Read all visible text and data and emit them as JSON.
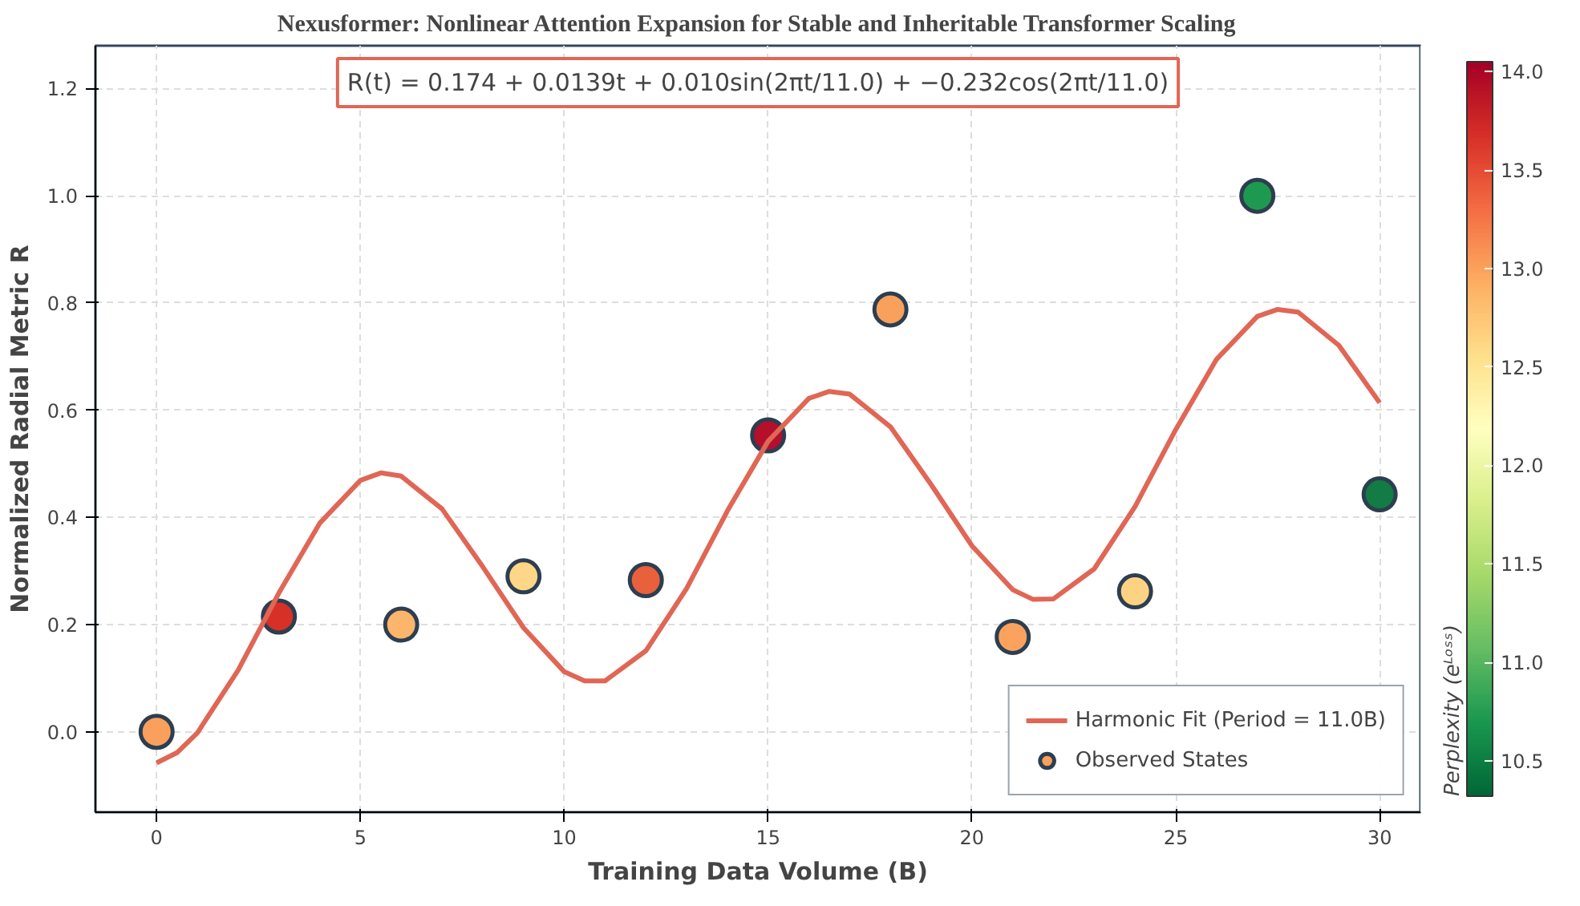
{
  "chart_data": {
    "type": "scatter",
    "title": "Nexusformer: Nonlinear Attention Expansion for Stable and Inheritable Transformer Scaling",
    "xlabel": "Training Data Volume (B)",
    "ylabel": "Normalized Radial Metric R",
    "clabel": "Perplexity (eᴸᵒˢˢ)",
    "annotations": [
      "R(t) = 0.174 + 0.0139t + 0.010sin(2πt/11.0) + −0.232cos(2πt/11.0)"
    ],
    "series": [
      {
        "name": "Harmonic Fit (Period = 11.0B)",
        "type": "line",
        "color": "#e06655",
        "x": [
          0,
          0.5,
          1,
          2,
          3,
          4,
          5,
          5.5,
          6,
          7,
          8,
          9,
          10,
          10.5,
          11,
          12,
          13,
          14,
          15,
          16,
          16.5,
          17,
          18,
          19,
          20,
          21,
          21.5,
          22,
          23,
          24,
          25,
          26,
          27,
          27.5,
          28,
          29,
          30
        ],
        "values": [
          -0.058,
          -0.039,
          -0.002,
          0.115,
          0.259,
          0.389,
          0.469,
          0.483,
          0.477,
          0.416,
          0.308,
          0.194,
          0.112,
          0.095,
          0.095,
          0.151,
          0.267,
          0.412,
          0.542,
          0.622,
          0.635,
          0.63,
          0.569,
          0.461,
          0.347,
          0.265,
          0.247,
          0.248,
          0.304,
          0.42,
          0.564,
          0.695,
          0.775,
          0.788,
          0.783,
          0.721,
          0.614
        ]
      },
      {
        "name": "Observed States",
        "marker": "circle",
        "x": [
          0,
          3,
          6,
          9,
          12,
          15,
          18,
          21,
          24,
          27,
          30
        ],
        "values": [
          0.0,
          0.215,
          0.2,
          0.29,
          0.283,
          0.553,
          0.788,
          0.177,
          0.262,
          1.0,
          0.443
        ],
        "colors": [
          "#f9a05c",
          "#d73027",
          "#fdb46b",
          "#fed687",
          "#e8603c",
          "#b50f2c",
          "#f9a05c",
          "#fba35e",
          "#fdd283",
          "#1e9a50",
          "#137b44"
        ]
      }
    ],
    "xlim": [
      -1.5,
      31
    ],
    "ylim": [
      -0.15,
      1.28
    ],
    "xticks": [
      0,
      5,
      10,
      15,
      20,
      25,
      30
    ],
    "yticks": [
      {
        "value": 0,
        "label": "0.0"
      },
      0.2,
      0.4,
      0.6,
      0.8,
      {
        "value": 1,
        "label": "1.0"
      },
      1.2
    ],
    "clim": [
      10.32,
      14.05
    ],
    "cticks": [
      10.5,
      {
        "value": 11,
        "label": "11.0"
      },
      11.5,
      {
        "value": 12,
        "label": "12.0"
      },
      12.5,
      {
        "value": 13,
        "label": "13.0"
      },
      13.5,
      {
        "value": 14,
        "label": "14.0"
      }
    ],
    "grid": true,
    "legend": "bottom right",
    "line_style": "solid"
  }
}
